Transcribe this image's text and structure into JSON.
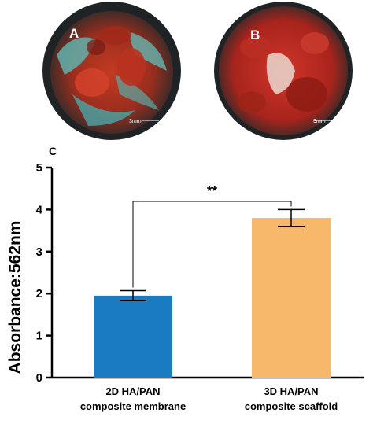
{
  "photos": [
    {
      "panel": "A",
      "scale_label": "3mm",
      "tissue_colors": [
        "#b8321f",
        "#4fa3a0",
        "#8a2a1a"
      ]
    },
    {
      "panel": "B",
      "scale_label": "3mm",
      "tissue_colors": [
        "#c32a22",
        "#e8d8d0",
        "#7a1812"
      ]
    }
  ],
  "chart_data": {
    "type": "bar",
    "panel_label": "C",
    "categories": [
      [
        "2D HA/PAN",
        "composite membrane"
      ],
      [
        "3D HA/PAN",
        "composite scaffold"
      ]
    ],
    "values": [
      1.95,
      3.8
    ],
    "error": [
      0.12,
      0.2
    ],
    "bar_colors": [
      "#1a7ac2",
      "#f7b86a"
    ],
    "ylabel": "Absorbance:562nm",
    "xlabel": "",
    "ylim": [
      0,
      5
    ],
    "yticks": [
      0,
      1,
      2,
      3,
      4,
      5
    ],
    "significance": {
      "label": "**",
      "between": [
        0,
        1
      ]
    },
    "grid": false
  }
}
